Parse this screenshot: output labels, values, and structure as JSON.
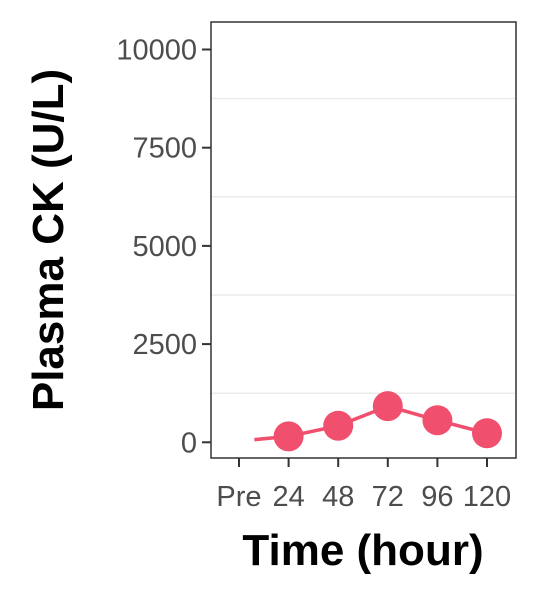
{
  "chart_data": {
    "type": "line",
    "categories": [
      "Pre",
      "24",
      "48",
      "72",
      "96",
      "120"
    ],
    "series": [
      {
        "values": [
          30,
          150,
          420,
          920,
          560,
          230
        ],
        "color": "#f0506e"
      }
    ],
    "first_point_fill": "#ffffff",
    "xlabel": "Time (hour)",
    "ylabel": "Plasma CK (U/L)",
    "ylim": [
      -400,
      10700
    ],
    "yticks": [
      0,
      2500,
      5000,
      7500,
      10000
    ],
    "ytick_labels": [
      "0",
      "2500",
      "5000",
      "7500",
      "10000"
    ],
    "minor_gridlines": [
      1250,
      3750,
      6250,
      8750
    ],
    "grid": true,
    "legend": "none",
    "panel_background": "#ffffff",
    "panel_border_color": "#333333",
    "gridline_color": "#ebebeb"
  }
}
